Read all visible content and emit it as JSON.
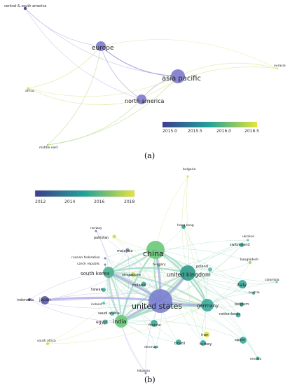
{
  "panel_a": {
    "caption": "(a)",
    "legend_ticks": [
      "2015.0",
      "2015.5",
      "2016.0",
      "2016.5"
    ],
    "nodes": [
      {
        "id": "central_south_america",
        "label": "central & south america",
        "size": "small",
        "color": "#4f4a8f"
      },
      {
        "id": "europe",
        "label": "europe",
        "size": "medium",
        "color": "#8a86cf"
      },
      {
        "id": "asia_pacific",
        "label": "asia pacific",
        "size": "large",
        "color": "#8a86cf"
      },
      {
        "id": "north_america",
        "label": "north america",
        "size": "medium",
        "color": "#8a86cf"
      },
      {
        "id": "eurasia",
        "label": "eurasia",
        "size": "tiny",
        "color": "#d6e03c"
      },
      {
        "id": "africa",
        "label": "africa",
        "size": "tiny",
        "color": "#c9dc3d"
      },
      {
        "id": "middle_east",
        "label": "middle east",
        "size": "tiny",
        "color": "#a8d34a"
      }
    ]
  },
  "panel_b": {
    "caption": "(b)",
    "legend_ticks": [
      "2012",
      "2014",
      "2016",
      "2018"
    ],
    "nodes": [
      {
        "id": "bulgaria",
        "label": "bulgaria",
        "color": "#d6e03c"
      },
      {
        "id": "norway",
        "label": "norway",
        "color": "#6a7fb0"
      },
      {
        "id": "hong_kong",
        "label": "hong kong",
        "color": "#3aa89a"
      },
      {
        "id": "ukraine",
        "label": "ukraine",
        "color": "#5ab8a6"
      },
      {
        "id": "pakistan",
        "label": "pakistan",
        "color": "#c9dc3d"
      },
      {
        "id": "switzerland",
        "label": "switzerland",
        "color": "#3aa89a"
      },
      {
        "id": "china",
        "label": "china",
        "color": "#6cc87a"
      },
      {
        "id": "malaysia",
        "label": "malaysia",
        "color": "#7a7fc8"
      },
      {
        "id": "russian_federation",
        "label": "russian federation",
        "color": "#6a7fb0"
      },
      {
        "id": "czech_republic",
        "label": "czech republic",
        "color": "#6a7fb0"
      },
      {
        "id": "bangladesh",
        "label": "bangladesh",
        "color": "#9ad255"
      },
      {
        "id": "hungary",
        "label": "hungary",
        "color": "#5ab8a6"
      },
      {
        "id": "poland",
        "label": "poland",
        "color": "#5ab8a6"
      },
      {
        "id": "south_korea",
        "label": "south korea",
        "color": "#4bb090"
      },
      {
        "id": "singapore",
        "label": "singapore",
        "color": "#c9dc3d"
      },
      {
        "id": "united_kingdom",
        "label": "united kingdom",
        "color": "#2f9a8a"
      },
      {
        "id": "colombia",
        "label": "colombia",
        "color": "#5ab8a6"
      },
      {
        "id": "finland",
        "label": "finland",
        "color": "#3aa89a"
      },
      {
        "id": "italy",
        "label": "italy",
        "color": "#3aa89a"
      },
      {
        "id": "taiwan",
        "label": "taiwan",
        "color": "#3aa89a"
      },
      {
        "id": "austria",
        "label": "austria",
        "color": "#3aa89a"
      },
      {
        "id": "indonesia",
        "label": "indonesia",
        "color": "#5a5cae"
      },
      {
        "id": "japan",
        "label": "japan",
        "color": "#5a5cae"
      },
      {
        "id": "united_states",
        "label": "united states",
        "color": "#7a7fd0"
      },
      {
        "id": "germany",
        "label": "germany",
        "color": "#3aa89a"
      },
      {
        "id": "ireland",
        "label": "ireland",
        "color": "#5ab8a6"
      },
      {
        "id": "belgium",
        "label": "belgium",
        "color": "#3aa89a"
      },
      {
        "id": "saudi_arabia",
        "label": "saudi arabia",
        "color": "#5ab8a6"
      },
      {
        "id": "netherlands",
        "label": "netherlands",
        "color": "#3aa89a"
      },
      {
        "id": "india",
        "label": "india",
        "color": "#6cc87a"
      },
      {
        "id": "egypt",
        "label": "egypt",
        "color": "#5ab8a6"
      },
      {
        "id": "france",
        "label": "france",
        "color": "#3aa89a"
      },
      {
        "id": "iran",
        "label": "iran",
        "color": "#d6e03c"
      },
      {
        "id": "spain",
        "label": "spain",
        "color": "#3aa89a"
      },
      {
        "id": "south_africa",
        "label": "south africa",
        "color": "#c9dc3d"
      },
      {
        "id": "brazil",
        "label": "brazil",
        "color": "#3aa89a"
      },
      {
        "id": "turkey",
        "label": "turkey",
        "color": "#3aa89a"
      },
      {
        "id": "denmark",
        "label": "denmark",
        "color": "#3aa89a"
      },
      {
        "id": "mexico",
        "label": "mexico",
        "color": "#3aa89a"
      },
      {
        "id": "lebanon",
        "label": "lebanon",
        "color": "#7a7fd0"
      }
    ]
  },
  "colors": {
    "scale_start": "#3b3f8c",
    "scale_mid": "#22a39a",
    "scale_end": "#e6e43a",
    "edge_purple": "#b7b4e6",
    "edge_green": "#a8dcc8"
  }
}
